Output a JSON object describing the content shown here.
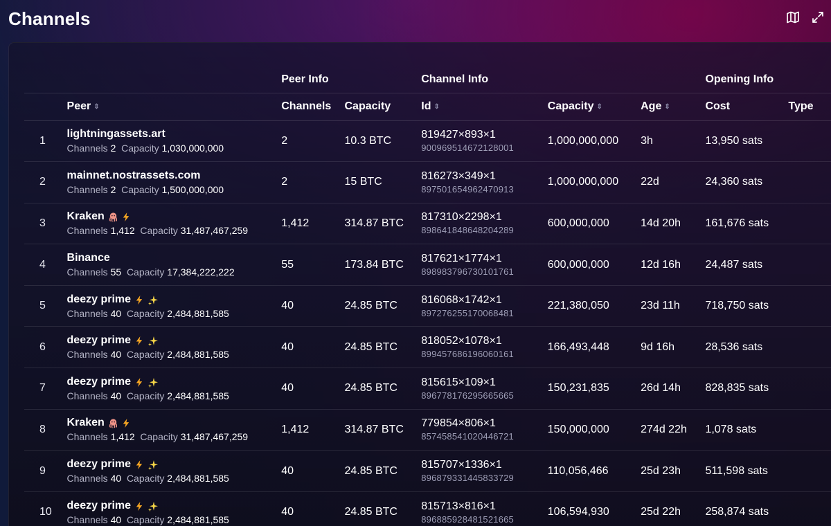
{
  "page": {
    "title": "Channels"
  },
  "toolbar": {
    "icons": [
      "map-icon",
      "expand-icon"
    ]
  },
  "groups": {
    "peer_info": "Peer Info",
    "channel_info": "Channel Info",
    "opening_info": "Opening Info"
  },
  "columns": {
    "peer": "Peer",
    "channels": "Channels",
    "peer_capacity": "Capacity",
    "id": "Id",
    "capacity": "Capacity",
    "age": "Age",
    "cost": "Cost",
    "type": "Type"
  },
  "labels": {
    "channels": "Channels",
    "capacity": "Capacity"
  },
  "rows": [
    {
      "index": "1",
      "name": "lightningassets.art",
      "badges": [],
      "peer_channels": "2",
      "peer_capacity": "1,030,000,000",
      "channels": "2",
      "capacity_btc": "10.3 BTC",
      "short_id": "819427×893×1",
      "long_id": "900969514672128001",
      "capacity": "1,000,000,000",
      "age": "3h",
      "cost": "13,950 sats"
    },
    {
      "index": "2",
      "name": "mainnet.nostrassets.com",
      "badges": [],
      "peer_channels": "2",
      "peer_capacity": "1,500,000,000",
      "channels": "2",
      "capacity_btc": "15 BTC",
      "short_id": "816273×349×1",
      "long_id": "897501654962470913",
      "capacity": "1,000,000,000",
      "age": "22d",
      "cost": "24,360 sats"
    },
    {
      "index": "3",
      "name": "Kraken",
      "badges": [
        "octopus",
        "bolt"
      ],
      "peer_channels": "1,412",
      "peer_capacity": "31,487,467,259",
      "channels": "1,412",
      "capacity_btc": "314.87 BTC",
      "short_id": "817310×2298×1",
      "long_id": "898641848648204289",
      "capacity": "600,000,000",
      "age": "14d 20h",
      "cost": "161,676 sats"
    },
    {
      "index": "4",
      "name": "Binance",
      "badges": [],
      "peer_channels": "55",
      "peer_capacity": "17,384,222,222",
      "channels": "55",
      "capacity_btc": "173.84 BTC",
      "short_id": "817621×1774×1",
      "long_id": "898983796730101761",
      "capacity": "600,000,000",
      "age": "12d 16h",
      "cost": "24,487 sats"
    },
    {
      "index": "5",
      "name": "deezy prime",
      "badges": [
        "bolt",
        "sparkles"
      ],
      "peer_channels": "40",
      "peer_capacity": "2,484,881,585",
      "channels": "40",
      "capacity_btc": "24.85 BTC",
      "short_id": "816068×1742×1",
      "long_id": "897276255170068481",
      "capacity": "221,380,050",
      "age": "23d 11h",
      "cost": "718,750 sats"
    },
    {
      "index": "6",
      "name": "deezy prime",
      "badges": [
        "bolt",
        "sparkles"
      ],
      "peer_channels": "40",
      "peer_capacity": "2,484,881,585",
      "channels": "40",
      "capacity_btc": "24.85 BTC",
      "short_id": "818052×1078×1",
      "long_id": "899457686196060161",
      "capacity": "166,493,448",
      "age": "9d 16h",
      "cost": "28,536 sats"
    },
    {
      "index": "7",
      "name": "deezy prime",
      "badges": [
        "bolt",
        "sparkles"
      ],
      "peer_channels": "40",
      "peer_capacity": "2,484,881,585",
      "channels": "40",
      "capacity_btc": "24.85 BTC",
      "short_id": "815615×109×1",
      "long_id": "896778176295665665",
      "capacity": "150,231,835",
      "age": "26d 14h",
      "cost": "828,835 sats"
    },
    {
      "index": "8",
      "name": "Kraken",
      "badges": [
        "octopus",
        "bolt"
      ],
      "peer_channels": "1,412",
      "peer_capacity": "31,487,467,259",
      "channels": "1,412",
      "capacity_btc": "314.87 BTC",
      "short_id": "779854×806×1",
      "long_id": "857458541020446721",
      "capacity": "150,000,000",
      "age": "274d 22h",
      "cost": "1,078 sats"
    },
    {
      "index": "9",
      "name": "deezy prime",
      "badges": [
        "bolt",
        "sparkles"
      ],
      "peer_channels": "40",
      "peer_capacity": "2,484,881,585",
      "channels": "40",
      "capacity_btc": "24.85 BTC",
      "short_id": "815707×1336×1",
      "long_id": "896879331445833729",
      "capacity": "110,056,466",
      "age": "25d 23h",
      "cost": "511,598 sats"
    },
    {
      "index": "10",
      "name": "deezy prime",
      "badges": [
        "bolt",
        "sparkles"
      ],
      "peer_channels": "40",
      "peer_capacity": "2,484,881,585",
      "channels": "40",
      "capacity_btc": "24.85 BTC",
      "short_id": "815713×816×1",
      "long_id": "896885928481521665",
      "capacity": "106,594,930",
      "age": "25d 22h",
      "cost": "258,874 sats"
    }
  ]
}
